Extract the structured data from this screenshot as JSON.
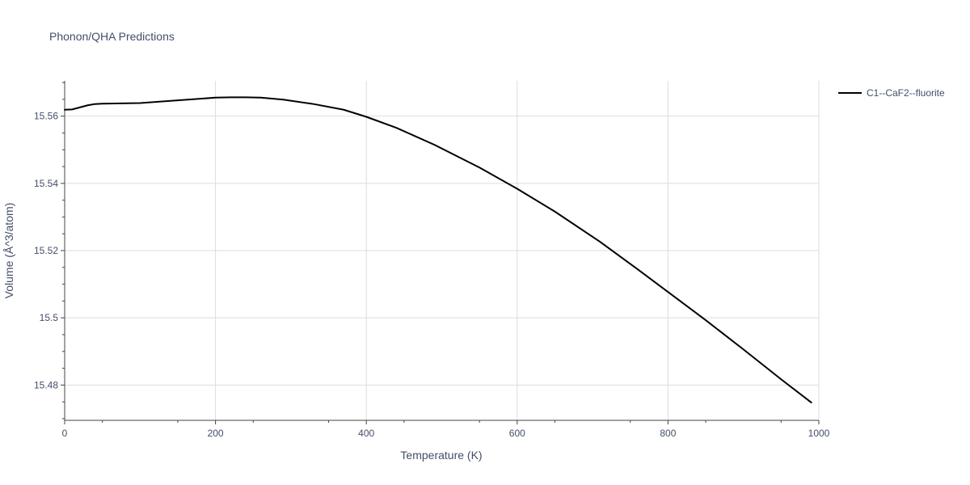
{
  "chart_data": {
    "type": "line",
    "title": "Phonon/QHA Predictions",
    "xlabel": "Temperature (K)",
    "ylabel": "Volume (Å^3/atom)",
    "xlim": [
      0,
      1000
    ],
    "ylim": [
      15.4695,
      15.5705
    ],
    "x_ticks": [
      0,
      200,
      400,
      600,
      800,
      1000
    ],
    "x_tick_labels": [
      "0",
      "200",
      "400",
      "600",
      "800",
      "1000"
    ],
    "y_ticks": [
      15.48,
      15.5,
      15.52,
      15.54,
      15.56
    ],
    "y_tick_labels": [
      "15.48",
      "15.5",
      "15.52",
      "15.54",
      "15.56"
    ],
    "grid": true,
    "legend_position": "top-right",
    "series": [
      {
        "name": "C1--CaF2--fluorite",
        "color": "#000000",
        "x": [
          0,
          10,
          20,
          30,
          40,
          50,
          75,
          100,
          150,
          200,
          220,
          240,
          260,
          290,
          330,
          370,
          400,
          440,
          490,
          550,
          600,
          650,
          710,
          760,
          800,
          850,
          900,
          950,
          990
        ],
        "y": [
          15.5619,
          15.562,
          15.5626,
          15.5632,
          15.5636,
          15.5637,
          15.5638,
          15.5639,
          15.5647,
          15.5655,
          15.5656,
          15.5656,
          15.5655,
          15.5649,
          15.5636,
          15.5619,
          15.5598,
          15.5565,
          15.5515,
          15.5447,
          15.5384,
          15.5316,
          15.5226,
          15.5144,
          15.5077,
          15.4993,
          15.4906,
          15.4817,
          15.4748
        ]
      }
    ]
  }
}
